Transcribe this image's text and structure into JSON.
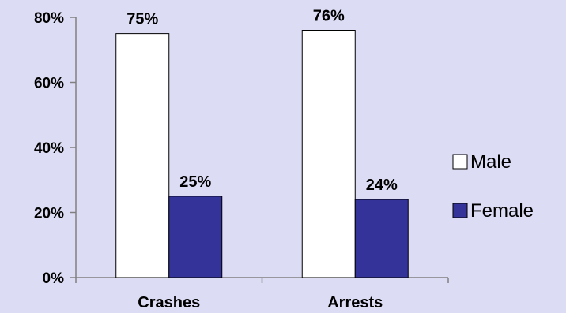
{
  "colors": {
    "background": "#dcdcf4",
    "axis": "#808080",
    "bar_outline": "#000000"
  },
  "chart_data": {
    "type": "bar",
    "categories": [
      "Crashes",
      "Arrests"
    ],
    "series": [
      {
        "name": "Male",
        "values": [
          75,
          76
        ],
        "labels": [
          "75%",
          "76%"
        ],
        "color": "#ffffff"
      },
      {
        "name": "Female",
        "values": [
          25,
          24
        ],
        "labels": [
          "25%",
          "24%"
        ],
        "color": "#333399"
      }
    ],
    "ylim": [
      0,
      80
    ],
    "yticks": [
      0,
      20,
      40,
      60,
      80
    ],
    "ytick_labels": [
      "0%",
      "20%",
      "40%",
      "60%",
      "80%"
    ],
    "grid": false,
    "legend_position": "right"
  }
}
